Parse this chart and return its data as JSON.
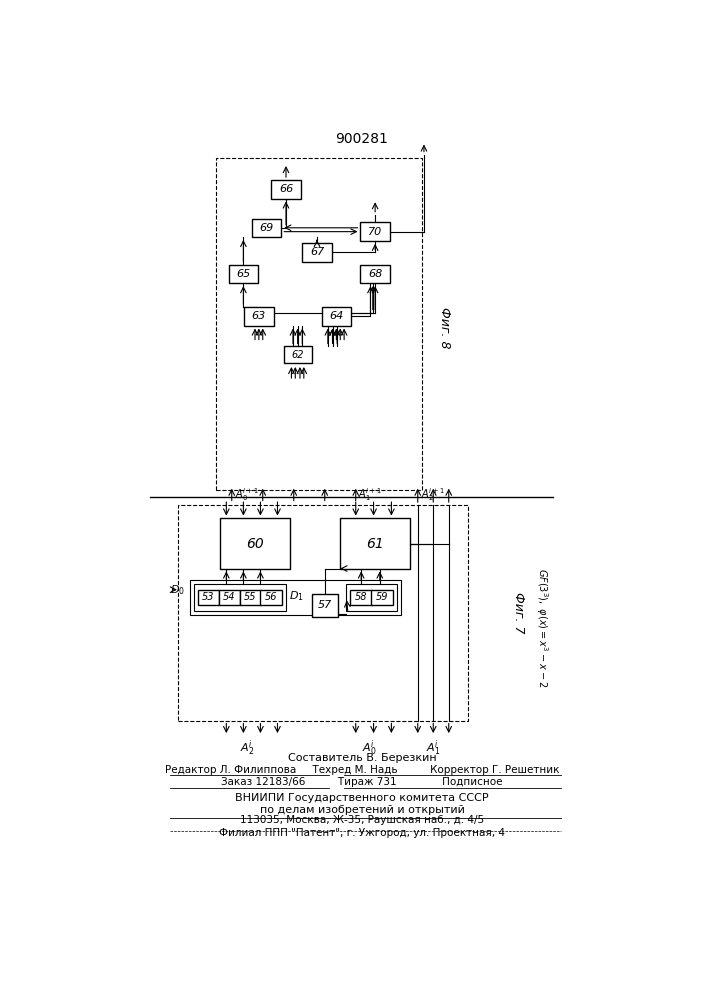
{
  "title": "900281",
  "fig8_label": "Фиг. 8",
  "fig7_label": "Фиг. 7",
  "footer_lines": [
    "Составитель В. Березкин",
    "Редактор Л. Филиппова     Техред М. Надь          Корректор Г. Решетник",
    "Заказ 12183/66          Тираж 731              Подписное",
    "ВНИИПИ Государственного комитета СССР",
    "по делам изобретений и открытий",
    "113035, Москва, Ж-35, Раушская наб., д. 4/5",
    "Филиал ППП \"Патент\", г. Ужгород, ул. Проектная, 4"
  ],
  "background_color": "#ffffff",
  "box_color": "#000000",
  "line_color": "#000000"
}
